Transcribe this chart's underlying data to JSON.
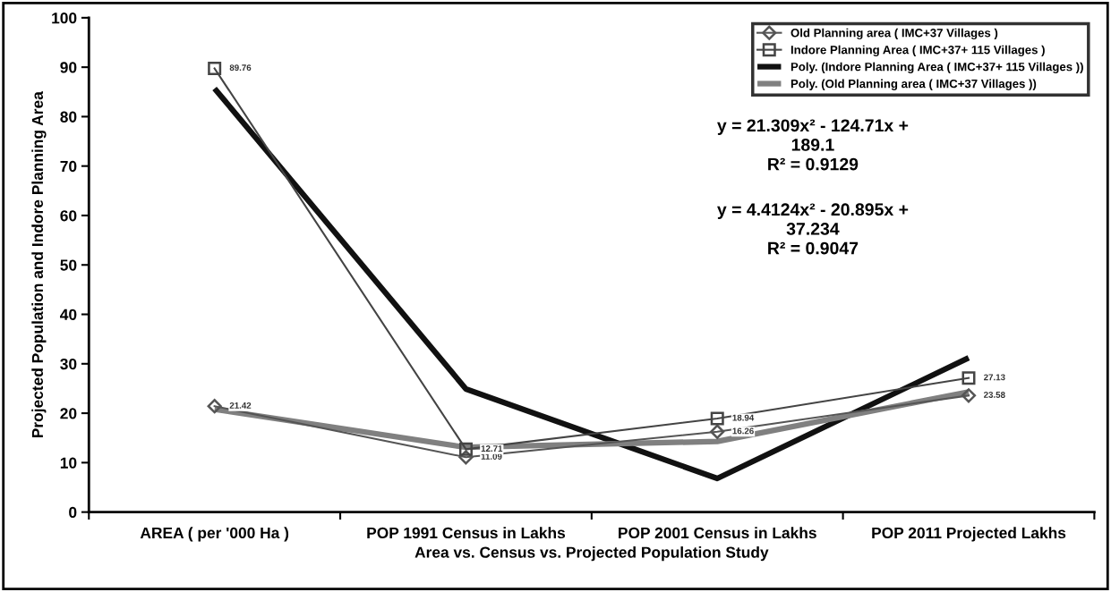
{
  "chart_data": {
    "type": "line",
    "xlabel": "Area vs. Census vs. Projected Population Study",
    "ylabel": "Projected Population and Indore Planning Area",
    "categories": [
      "AREA ( per '000 Ha )",
      "POP 1991 Census in Lakhs",
      "POP 2001 Census in Lakhs",
      "POP 2011 Projected Lakhs"
    ],
    "series": [
      {
        "name": "Old Planning area ( IMC+37 Villages )",
        "color": "#555555",
        "values": [
          21.42,
          11.09,
          16.26,
          23.58
        ],
        "marker": "diamond",
        "value_labels": [
          "21.42",
          "11.09",
          "16.26",
          "23.58"
        ]
      },
      {
        "name": "Indore Planning Area ( IMC+37+ 115 Villages )",
        "color": "#444444",
        "values": [
          89.76,
          12.71,
          18.94,
          27.13
        ],
        "marker": "square",
        "value_labels": [
          "89.76",
          "12.71",
          "18.94",
          "27.13"
        ]
      },
      {
        "name": "Poly. (Indore Planning Area ( IMC+37+ 115 Villages ))",
        "color": "#111111",
        "values": [
          85.7,
          24.9,
          6.8,
          31.2
        ],
        "marker": "none"
      },
      {
        "name": "Poly. (Old Planning area ( IMC+37 Villages ))",
        "color": "#808080",
        "values": [
          20.8,
          13.1,
          14.3,
          24.3
        ],
        "marker": "none"
      }
    ],
    "ylim": [
      0,
      100
    ],
    "yticks": [
      0,
      10,
      20,
      30,
      40,
      50,
      60,
      70,
      80,
      90,
      100
    ],
    "grid": false,
    "legend": "top right",
    "annotations": [
      "y = 21.309x² - 124.71x +\n189.1\nR² = 0.9129",
      "y = 4.4124x² - 20.895x +\n37.234\nR² = 0.9047"
    ]
  }
}
